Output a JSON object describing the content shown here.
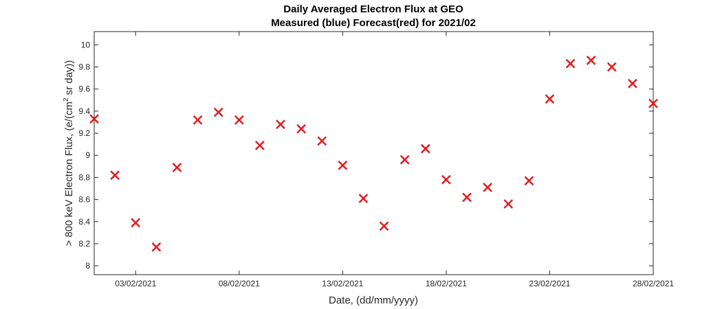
{
  "chart_data": {
    "type": "scatter",
    "title": "Daily Averaged Electron Flux at GEO",
    "subtitle": "Measured (blue) Forecast(red) for 2021/02",
    "xlabel": "Date, (dd/mm/yyyy)",
    "ylabel_prefix": "> 800 keV Electron Flux, (e/(cm",
    "ylabel_superscript": "2",
    "ylabel_suffix": " sr day))",
    "x_ticks": [
      "03/02/2021",
      "08/02/2021",
      "13/02/2021",
      "18/02/2021",
      "23/02/2021",
      "28/02/2021"
    ],
    "y_ticks": [
      "8",
      "8.2",
      "8.4",
      "8.6",
      "8.8",
      "9",
      "9.2",
      "9.4",
      "9.6",
      "9.8",
      "10"
    ],
    "xlim": [
      "01/02/2021",
      "28/02/2021"
    ],
    "ylim": [
      7.92,
      10.12
    ],
    "grid": false,
    "series": [
      {
        "color": "#e41a1c",
        "marker": "x",
        "x": [
          "01/02/2021",
          "02/02/2021",
          "03/02/2021",
          "04/02/2021",
          "05/02/2021",
          "06/02/2021",
          "07/02/2021",
          "08/02/2021",
          "09/02/2021",
          "10/02/2021",
          "11/02/2021",
          "12/02/2021",
          "13/02/2021",
          "14/02/2021",
          "15/02/2021",
          "16/02/2021",
          "17/02/2021",
          "18/02/2021",
          "19/02/2021",
          "20/02/2021",
          "21/02/2021",
          "22/02/2021",
          "23/02/2021",
          "24/02/2021",
          "25/02/2021",
          "26/02/2021",
          "27/02/2021",
          "28/02/2021"
        ],
        "y": [
          9.33,
          8.82,
          8.39,
          8.17,
          8.89,
          9.32,
          9.39,
          9.32,
          9.09,
          9.28,
          9.24,
          9.13,
          8.91,
          8.61,
          8.36,
          8.96,
          9.06,
          8.78,
          8.62,
          8.71,
          8.56,
          8.77,
          9.51,
          9.83,
          9.86,
          9.8,
          9.65,
          9.47
        ]
      }
    ]
  }
}
